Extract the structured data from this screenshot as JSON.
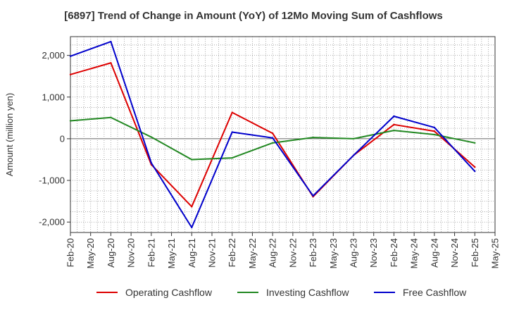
{
  "chart_data": {
    "type": "line",
    "title": "[6897]  Trend of Change in Amount (YoY) of 12Mo Moving Sum of Cashflows",
    "xlabel": "",
    "ylabel": "Amount (million yen)",
    "ylim": [
      -2250,
      2450
    ],
    "yticks": [
      -2000,
      -1000,
      0,
      1000,
      2000
    ],
    "ytick_labels": [
      "-2,000",
      "-1,000",
      "0",
      "1,000",
      "2,000"
    ],
    "categories": [
      "Feb-20",
      "May-20",
      "Aug-20",
      "Nov-20",
      "Feb-21",
      "May-21",
      "Aug-21",
      "Nov-21",
      "Feb-22",
      "May-22",
      "Aug-22",
      "Nov-22",
      "Feb-23",
      "May-23",
      "Aug-23",
      "Nov-23",
      "Feb-24",
      "May-24",
      "Aug-24",
      "Nov-24",
      "Feb-25",
      "May-25"
    ],
    "grid": true,
    "legend_position": "bottom",
    "series": [
      {
        "name": "Operating Cashflow",
        "color": "#dd0000",
        "values": [
          1540,
          null,
          1820,
          null,
          -620,
          null,
          -1630,
          null,
          630,
          null,
          130,
          null,
          -1390,
          null,
          -400,
          null,
          340,
          null,
          180,
          null,
          -680,
          null
        ]
      },
      {
        "name": "Investing Cashflow",
        "color": "#228822",
        "values": [
          430,
          null,
          510,
          null,
          40,
          null,
          -500,
          null,
          -460,
          null,
          -100,
          null,
          30,
          null,
          0,
          null,
          200,
          null,
          100,
          null,
          -100,
          null
        ]
      },
      {
        "name": "Free Cashflow",
        "color": "#0000cc",
        "values": [
          1980,
          null,
          2330,
          null,
          -580,
          null,
          -2130,
          null,
          160,
          null,
          20,
          null,
          -1370,
          null,
          -400,
          null,
          540,
          null,
          270,
          null,
          -780,
          null
        ]
      }
    ]
  }
}
